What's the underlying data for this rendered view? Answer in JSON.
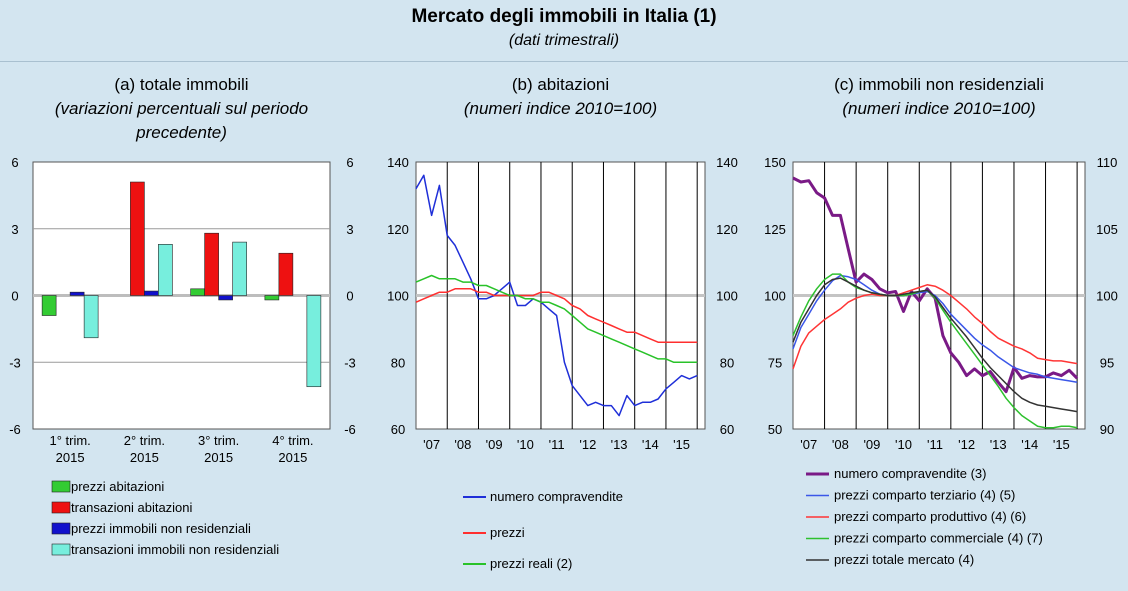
{
  "header": {
    "title": "Mercato degli immobili in Italia (1)",
    "subtitle": "(dati trimestrali)"
  },
  "chart_data": [
    {
      "type": "bar",
      "title": "(a) totale immobili",
      "subtitle_lines": [
        "(variazioni percentuali sul periodo",
        "precedente)"
      ],
      "ylim": [
        -6,
        6
      ],
      "yticks": [
        6,
        3,
        0,
        -3,
        -6
      ],
      "yticklabels": [
        "6",
        "3",
        "0",
        "-3",
        "-6"
      ],
      "categories": [
        [
          "1° trim.",
          "2015"
        ],
        [
          "2° trim.",
          "2015"
        ],
        [
          "3° trim.",
          "2015"
        ],
        [
          "4° trim.",
          "2015"
        ]
      ],
      "series": [
        {
          "name": "prezzi abitazioni",
          "color": "#33cc33",
          "values": [
            -0.9,
            0.0,
            0.3,
            -0.2
          ]
        },
        {
          "name": "transazioni abitazioni",
          "color": "#ee1111",
          "values": [
            0.0,
            5.1,
            2.8,
            1.9
          ]
        },
        {
          "name": "prezzi immobili non residenziali",
          "color": "#1111cc",
          "values": [
            0.15,
            0.2,
            -0.2,
            0.0
          ]
        },
        {
          "name": "transazioni immobili non residenziali",
          "color": "#77eedd",
          "values": [
            -1.9,
            2.3,
            2.4,
            -4.1
          ]
        }
      ],
      "grid": true,
      "legend": "bottom"
    },
    {
      "type": "line",
      "title": "(b) abitazioni",
      "subtitle_lines": [
        "(numeri indice 2010=100)"
      ],
      "ylim": [
        60,
        140
      ],
      "yticks": [
        140,
        120,
        100,
        80,
        60
      ],
      "xticklabels": [
        "'07",
        "'08",
        "'09",
        "'10",
        "'11",
        "'12",
        "'13",
        "'14",
        "'15"
      ],
      "xlim": [
        2006.75,
        2016.0
      ],
      "series": [
        {
          "name": "numero compravendite",
          "color": "#1f2fd8",
          "x": [
            2006.75,
            2007.0,
            2007.25,
            2007.5,
            2007.75,
            2008.0,
            2008.25,
            2008.5,
            2008.75,
            2009.0,
            2009.25,
            2009.5,
            2009.75,
            2010.0,
            2010.25,
            2010.5,
            2010.75,
            2011.0,
            2011.25,
            2011.5,
            2011.75,
            2012.0,
            2012.25,
            2012.5,
            2012.75,
            2013.0,
            2013.25,
            2013.5,
            2013.75,
            2014.0,
            2014.25,
            2014.5,
            2014.75,
            2015.0,
            2015.25,
            2015.5,
            2015.75
          ],
          "y": [
            132,
            136,
            124,
            133,
            118,
            115,
            110,
            105,
            99,
            99,
            100,
            102,
            104,
            97,
            97,
            99,
            98,
            96,
            94,
            80,
            73,
            70,
            67,
            68,
            67,
            67,
            64,
            70,
            67,
            68,
            68,
            69,
            72,
            74,
            76,
            75,
            76
          ]
        },
        {
          "name": "prezzi",
          "color": "#ff2f2f",
          "x": [
            2006.75,
            2007.0,
            2007.25,
            2007.5,
            2007.75,
            2008.0,
            2008.25,
            2008.5,
            2008.75,
            2009.0,
            2009.25,
            2009.5,
            2009.75,
            2010.0,
            2010.25,
            2010.5,
            2010.75,
            2011.0,
            2011.25,
            2011.5,
            2011.75,
            2012.0,
            2012.25,
            2012.5,
            2012.75,
            2013.0,
            2013.25,
            2013.5,
            2013.75,
            2014.0,
            2014.25,
            2014.5,
            2014.75,
            2015.0,
            2015.25,
            2015.5,
            2015.75
          ],
          "y": [
            98,
            99,
            100,
            101,
            101,
            102,
            102,
            102,
            101,
            101,
            100,
            100,
            100,
            100,
            100,
            100,
            101,
            101,
            100,
            99,
            97,
            96,
            94,
            93,
            92,
            91,
            90,
            89,
            89,
            88,
            87,
            86,
            86,
            86,
            86,
            86,
            86
          ]
        },
        {
          "name": "prezzi reali (2)",
          "color": "#29c229",
          "x": [
            2006.75,
            2007.0,
            2007.25,
            2007.5,
            2007.75,
            2008.0,
            2008.25,
            2008.5,
            2008.75,
            2009.0,
            2009.25,
            2009.5,
            2009.75,
            2010.0,
            2010.25,
            2010.5,
            2010.75,
            2011.0,
            2011.25,
            2011.5,
            2011.75,
            2012.0,
            2012.25,
            2012.5,
            2012.75,
            2013.0,
            2013.25,
            2013.5,
            2013.75,
            2014.0,
            2014.25,
            2014.5,
            2014.75,
            2015.0,
            2015.25,
            2015.5,
            2015.75
          ],
          "y": [
            104,
            105,
            106,
            105,
            105,
            105,
            104,
            104,
            103,
            103,
            102,
            101,
            100,
            100,
            99,
            99,
            98,
            98,
            97,
            96,
            94,
            92,
            90,
            89,
            88,
            87,
            86,
            85,
            84,
            83,
            82,
            81,
            81,
            80,
            80,
            80,
            80
          ]
        }
      ],
      "grid": false,
      "legend": "bottom"
    },
    {
      "type": "line",
      "title": "(c) immobili non residenziali",
      "subtitle_lines": [
        "(numeri indice 2010=100)"
      ],
      "ylim": [
        50,
        150
      ],
      "yticks": [
        150,
        125,
        100,
        75,
        50
      ],
      "y2ticks": [
        110,
        105,
        100,
        95,
        90
      ],
      "y2lim": [
        90,
        110
      ],
      "xticklabels": [
        "'07",
        "'08",
        "'09",
        "'10",
        "'11",
        "'12",
        "'13",
        "'14",
        "'15"
      ],
      "xlim": [
        2006.75,
        2016.0
      ],
      "series": [
        {
          "name": "numero compravendite (3)",
          "color": "#7a1a86",
          "width": 3,
          "axis": "right",
          "x": [
            2006.75,
            2007.0,
            2007.25,
            2007.5,
            2007.75,
            2008.0,
            2008.25,
            2008.5,
            2008.75,
            2009.0,
            2009.25,
            2009.5,
            2009.75,
            2010.0,
            2010.25,
            2010.5,
            2010.75,
            2011.0,
            2011.25,
            2011.5,
            2011.75,
            2012.0,
            2012.25,
            2012.5,
            2012.75,
            2013.0,
            2013.25,
            2013.5,
            2013.75,
            2014.0,
            2014.25,
            2014.5,
            2014.75,
            2015.0,
            2015.25,
            2015.5,
            2015.75
          ],
          "y": [
            108.8,
            108.5,
            108.6,
            107.7,
            107.3,
            106.0,
            106.0,
            103.5,
            101.0,
            101.6,
            101.2,
            100.5,
            100.2,
            100.3,
            98.8,
            100.3,
            99.6,
            100.5,
            99.8,
            97.0,
            95.7,
            95.0,
            94.0,
            94.5,
            94.0,
            94.3,
            93.5,
            92.8,
            94.6,
            93.8,
            94.0,
            93.9,
            93.9,
            94.2,
            94.0,
            94.4,
            93.8
          ]
        },
        {
          "name": "prezzi comparto terziario (4) (5)",
          "color": "#3b57e8",
          "axis": "right",
          "x": [
            2006.75,
            2007.0,
            2007.25,
            2007.5,
            2007.75,
            2008.0,
            2008.25,
            2008.5,
            2008.75,
            2009.0,
            2009.25,
            2009.5,
            2009.75,
            2010.0,
            2010.25,
            2010.5,
            2010.75,
            2011.0,
            2011.25,
            2011.5,
            2011.75,
            2012.0,
            2012.25,
            2012.5,
            2012.75,
            2013.0,
            2013.25,
            2013.5,
            2013.75,
            2014.0,
            2014.25,
            2014.5,
            2014.75,
            2015.0,
            2015.25,
            2015.5,
            2015.75
          ],
          "y": [
            96.0,
            97.6,
            98.6,
            99.6,
            100.4,
            101.1,
            101.5,
            101.4,
            101.2,
            100.8,
            100.4,
            100.1,
            100.0,
            100.0,
            100.0,
            100.1,
            100.2,
            100.3,
            100.0,
            99.4,
            98.6,
            98.0,
            97.4,
            96.8,
            96.3,
            95.9,
            95.4,
            95.0,
            94.6,
            94.4,
            94.2,
            94.1,
            93.9,
            93.8,
            93.7,
            93.6,
            93.5
          ]
        },
        {
          "name": "prezzi comparto produttivo (4) (6)",
          "color": "#ff3535",
          "axis": "right",
          "x": [
            2006.75,
            2007.0,
            2007.25,
            2007.5,
            2007.75,
            2008.0,
            2008.25,
            2008.5,
            2008.75,
            2009.0,
            2009.25,
            2009.5,
            2009.75,
            2010.0,
            2010.25,
            2010.5,
            2010.75,
            2011.0,
            2011.25,
            2011.5,
            2011.75,
            2012.0,
            2012.25,
            2012.5,
            2012.75,
            2013.0,
            2013.25,
            2013.5,
            2013.75,
            2014.0,
            2014.25,
            2014.5,
            2014.75,
            2015.0,
            2015.25,
            2015.5,
            2015.75
          ],
          "y": [
            94.5,
            96.2,
            97.2,
            97.7,
            98.2,
            98.6,
            99.0,
            99.5,
            99.8,
            100.0,
            100.1,
            100.0,
            100.0,
            100.0,
            100.2,
            100.4,
            100.6,
            100.8,
            100.7,
            100.4,
            100.0,
            99.5,
            99.0,
            98.4,
            97.9,
            97.3,
            96.8,
            96.5,
            96.2,
            96.0,
            95.7,
            95.3,
            95.2,
            95.1,
            95.1,
            95.0,
            94.9
          ]
        },
        {
          "name": "prezzi comparto commerciale (4) (7)",
          "color": "#2ec12e",
          "axis": "right",
          "x": [
            2006.75,
            2007.0,
            2007.25,
            2007.5,
            2007.75,
            2008.0,
            2008.25,
            2008.5,
            2008.75,
            2009.0,
            2009.25,
            2009.5,
            2009.75,
            2010.0,
            2010.25,
            2010.5,
            2010.75,
            2011.0,
            2011.25,
            2011.5,
            2011.75,
            2012.0,
            2012.25,
            2012.5,
            2012.75,
            2013.0,
            2013.25,
            2013.5,
            2013.75,
            2014.0,
            2014.25,
            2014.5,
            2014.75,
            2015.0,
            2015.25,
            2015.5,
            2015.75
          ],
          "y": [
            97.0,
            98.4,
            99.6,
            100.5,
            101.2,
            101.6,
            101.6,
            101.0,
            100.6,
            100.4,
            100.2,
            100.1,
            100.0,
            100.0,
            100.0,
            100.1,
            100.3,
            100.4,
            99.8,
            98.9,
            98.0,
            97.2,
            96.4,
            95.6,
            94.8,
            94.0,
            93.2,
            92.3,
            91.6,
            91.0,
            90.6,
            90.2,
            90.1,
            90.1,
            90.2,
            90.2,
            90.1
          ]
        },
        {
          "name": "prezzi totale mercato (4)",
          "color": "#333333",
          "axis": "right",
          "x": [
            2006.75,
            2007.0,
            2007.25,
            2007.5,
            2007.75,
            2008.0,
            2008.25,
            2008.5,
            2008.75,
            2009.0,
            2009.25,
            2009.5,
            2009.75,
            2010.0,
            2010.25,
            2010.5,
            2010.75,
            2011.0,
            2011.25,
            2011.5,
            2011.75,
            2012.0,
            2012.25,
            2012.5,
            2012.75,
            2013.0,
            2013.25,
            2013.5,
            2013.75,
            2014.0,
            2014.25,
            2014.5,
            2014.75,
            2015.0,
            2015.25,
            2015.5,
            2015.75
          ],
          "y": [
            96.5,
            98.0,
            99.0,
            100.0,
            100.8,
            101.2,
            101.3,
            101.0,
            100.7,
            100.4,
            100.2,
            100.1,
            100.0,
            100.0,
            100.1,
            100.2,
            100.3,
            100.4,
            99.9,
            99.1,
            98.3,
            97.6,
            96.9,
            96.1,
            95.3,
            94.6,
            94.0,
            93.4,
            92.8,
            92.3,
            92.0,
            91.8,
            91.7,
            91.6,
            91.5,
            91.4,
            91.3
          ]
        }
      ],
      "grid": false,
      "legend": "bottom"
    }
  ]
}
